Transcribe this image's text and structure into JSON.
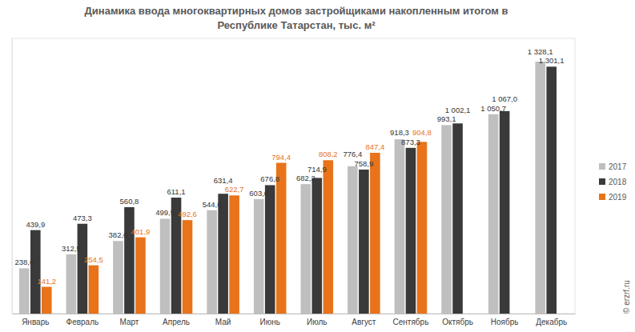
{
  "chart_data": {
    "type": "bar",
    "title": "Динамика ввода многоквартирных домов застройщиками накопленным итогом в Республике Татарстан, тыс. м²",
    "categories": [
      "Январь",
      "Февраль",
      "Март",
      "Апрель",
      "Май",
      "Июнь",
      "Июль",
      "Август",
      "Сентябрь",
      "Октябрь",
      "Ноябрь",
      "Декабрь"
    ],
    "series": [
      {
        "name": "2017",
        "color": "#bfbfbf",
        "values": [
          238.6,
          312.5,
          382.6,
          499.5,
          544.6,
          603.6,
          682.2,
          776.4,
          918.3,
          993.1,
          1050.7,
          1328.1
        ],
        "value_labels": [
          "238,6",
          "312,5",
          "382,6",
          "499,5",
          "544,6",
          "603,6",
          "682,2",
          "776,4",
          "918,3",
          "993,1",
          "1 050,7",
          "1 328,1"
        ]
      },
      {
        "name": "2018",
        "color": "#3a3a3a",
        "values": [
          439.9,
          473.3,
          560.8,
          611.1,
          631.4,
          676.8,
          714.9,
          758.9,
          873.3,
          1002.1,
          1067.0,
          1301.1
        ],
        "value_labels": [
          "439,9",
          "473,3",
          "560,8",
          "611,1",
          "631,4",
          "676,8",
          "714,9",
          "758,9",
          "873,3",
          "1 002,1",
          "1 067,0",
          "1 301,1"
        ]
      },
      {
        "name": "2019",
        "color": "#e8731a",
        "values": [
          141.2,
          254.5,
          401.9,
          492.6,
          622.7,
          794.4,
          808.2,
          847.4,
          904.8,
          null,
          null,
          null
        ],
        "value_labels": [
          "141,2",
          "254,5",
          "401,9",
          "492,6",
          "622,7",
          "794,4",
          "808,2",
          "847,4",
          "904,8",
          null,
          null,
          null
        ]
      }
    ],
    "ylim": [
      0,
      1450
    ],
    "grid": false,
    "legend": "right",
    "data_labels": true,
    "tick_labels": "x",
    "annotations": [
      "© erzrf.ru"
    ]
  }
}
